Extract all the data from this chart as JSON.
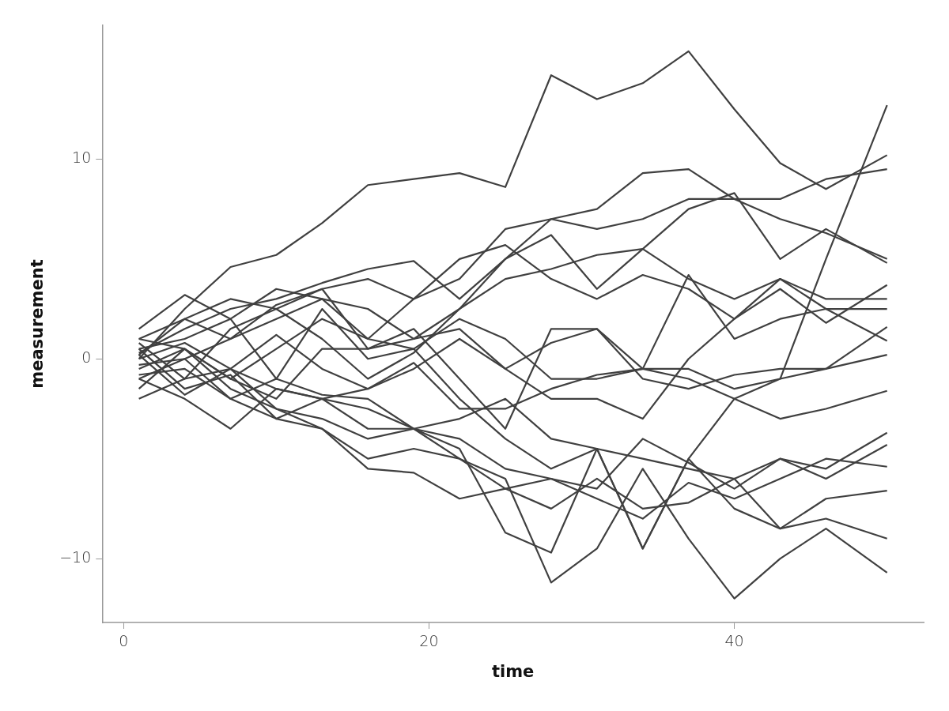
{
  "chart_data": {
    "type": "line",
    "xlabel": "time",
    "ylabel": "measurement",
    "x": [
      1,
      4,
      7,
      10,
      13,
      16,
      19,
      22,
      25,
      28,
      31,
      34,
      37,
      40,
      43,
      46,
      50
    ],
    "xlim": [
      -1.4,
      52.4
    ],
    "ylim": [
      -13.2,
      16.7
    ],
    "xticks": [
      0,
      20,
      40
    ],
    "yticks": [
      {
        "value": -10,
        "label": "−10"
      },
      0,
      10
    ],
    "grid": false,
    "legend": false,
    "marker": "none",
    "series": [
      {
        "color": "#404040",
        "values": [
          0,
          2.5,
          4.6,
          5.2,
          6.8,
          8.7,
          9,
          9.3,
          8.6,
          14.2,
          13,
          13.8,
          15.4,
          12.5,
          9.8,
          8.5,
          10.2
        ]
      },
      {
        "color": "#404040",
        "values": [
          0.5,
          1,
          2,
          3.5,
          3,
          1,
          0.5,
          -2,
          -4,
          -5.5,
          -4.5,
          -9.5,
          -5,
          -2,
          -1,
          5,
          12.7
        ]
      },
      {
        "color": "#404040",
        "values": [
          1,
          2,
          3,
          2.5,
          3.5,
          4,
          3,
          4,
          6.5,
          7,
          7.5,
          9.3,
          9.5,
          8,
          8,
          9,
          9.5
        ]
      },
      {
        "color": "#404040",
        "values": [
          -1,
          0,
          1,
          2,
          3,
          2.5,
          1,
          2.5,
          5,
          7,
          6.5,
          7,
          8,
          8,
          7,
          6.3,
          5
        ]
      },
      {
        "color": "#404040",
        "values": [
          0.3,
          1.5,
          2.5,
          3,
          3.8,
          4.5,
          4.9,
          3,
          5,
          6.2,
          3.5,
          5.5,
          7.5,
          8.3,
          5,
          6.5,
          4.8
        ]
      },
      {
        "color": "#404040",
        "values": [
          -0.5,
          0.5,
          -1,
          0.5,
          2,
          1,
          3,
          5,
          5.7,
          4,
          3,
          4.2,
          3.5,
          2,
          3.5,
          1.8,
          3.7
        ]
      },
      {
        "color": "#404040",
        "values": [
          0.8,
          -1,
          1.5,
          2.5,
          1,
          -1,
          0.3,
          2.5,
          4,
          4.5,
          5.2,
          5.5,
          4,
          3,
          4,
          3,
          3
        ]
      },
      {
        "color": "#404040",
        "values": [
          -1.5,
          0.5,
          -1,
          -2,
          0.5,
          0.5,
          1,
          1.5,
          -0.5,
          0.8,
          1.5,
          -0.5,
          4.2,
          1,
          2,
          2.5,
          2.5
        ]
      },
      {
        "color": "#404040",
        "values": [
          0.2,
          2,
          1,
          2.7,
          3.5,
          0.5,
          1.5,
          -1,
          -3.5,
          1.5,
          1.5,
          -1,
          -1.5,
          -0.8,
          -0.5,
          -0.5,
          1.6
        ]
      },
      {
        "color": "#404040",
        "values": [
          -2,
          -1,
          -0.5,
          -1.5,
          -2,
          -1.5,
          -0.5,
          1,
          -0.5,
          -2,
          -2,
          -3,
          0,
          2,
          4,
          2.5,
          0.9
        ]
      },
      {
        "color": "#404040",
        "values": [
          1.5,
          3.2,
          2,
          -1,
          2.5,
          0,
          0.5,
          2,
          1,
          -1,
          -1,
          -0.5,
          -0.5,
          -1.5,
          -1,
          -0.5,
          0.2
        ]
      },
      {
        "color": "#404040",
        "values": [
          0,
          0.8,
          -0.5,
          1.2,
          -0.5,
          -1.5,
          -0.2,
          -2.5,
          -2.5,
          -1.5,
          -0.8,
          -0.5,
          -1,
          -2,
          -3,
          -2.5,
          -1.6
        ]
      },
      {
        "color": "#404040",
        "values": [
          -1,
          -2,
          -3.5,
          -1.5,
          -2,
          -3.5,
          -3.5,
          -3,
          -2,
          -4,
          -4.5,
          -5,
          -5.5,
          -6,
          -5,
          -5.5,
          -3.7
        ]
      },
      {
        "color": "#404040",
        "values": [
          0.5,
          -1.5,
          -0.8,
          -3,
          -2,
          -2.5,
          -3.5,
          -4,
          -5.5,
          -6,
          -6.5,
          -4,
          -5.2,
          -6.5,
          -5,
          -6,
          -4.3
        ]
      },
      {
        "color": "#404040",
        "values": [
          -0.3,
          0,
          -2,
          -1,
          -1.8,
          -2,
          -3.5,
          -5,
          -6.5,
          -6,
          -7,
          -8,
          -6.2,
          -7,
          -6,
          -5,
          -5.4
        ]
      },
      {
        "color": "#404040",
        "values": [
          0.2,
          -1.8,
          -0.5,
          -2.5,
          -3.5,
          -5.5,
          -5.7,
          -7,
          -6.5,
          -7.5,
          -6,
          -7.5,
          -7.2,
          -6,
          -8.5,
          -7,
          -6.6
        ]
      },
      {
        "color": "#404040",
        "values": [
          1,
          0.5,
          -1.5,
          -2.5,
          -3,
          -4,
          -3.5,
          -4.5,
          -8.7,
          -9.7,
          -4.5,
          -9.5,
          -5,
          -7.5,
          -8.5,
          -8,
          -9
        ]
      },
      {
        "color": "#404040",
        "values": [
          -0.8,
          -0.5,
          -2,
          -3,
          -3.5,
          -5,
          -4.5,
          -5,
          -6,
          -11.2,
          -9.5,
          -5.5,
          -9,
          -12,
          -10,
          -8.5,
          -10.7
        ]
      }
    ]
  }
}
